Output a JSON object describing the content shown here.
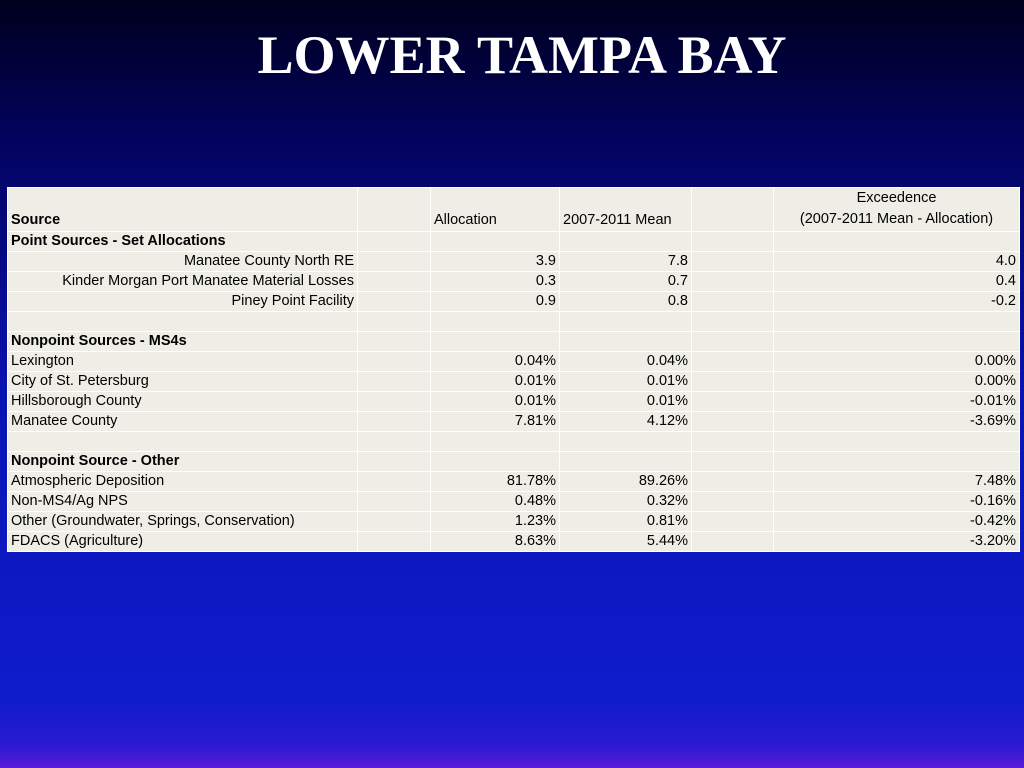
{
  "slide": {
    "title": "LOWER TAMPA BAY"
  },
  "table": {
    "headers": {
      "source": "Source",
      "allocation": "Allocation",
      "mean": "2007-2011 Mean",
      "exceedence_line1": "Exceedence",
      "exceedence_line2": "(2007-2011 Mean - Allocation)"
    },
    "sections": [
      {
        "heading": "Point Sources - Set Allocations",
        "rows": [
          {
            "source": "Manatee County North RE",
            "allocation": "3.9",
            "mean": "7.8",
            "exceedence": "4.0"
          },
          {
            "source": "Kinder Morgan Port Manatee Material Losses",
            "allocation": "0.3",
            "mean": "0.7",
            "exceedence": "0.4"
          },
          {
            "source": "Piney Point Facility",
            "allocation": "0.9",
            "mean": "0.8",
            "exceedence": "-0.2"
          }
        ]
      },
      {
        "heading": "Nonpoint Sources - MS4s",
        "rows": [
          {
            "source": "Lexington",
            "allocation": "0.04%",
            "mean": "0.04%",
            "exceedence": "0.00%"
          },
          {
            "source": "City of St. Petersburg",
            "allocation": "0.01%",
            "mean": "0.01%",
            "exceedence": "0.00%"
          },
          {
            "source": "Hillsborough County",
            "allocation": "0.01%",
            "mean": "0.01%",
            "exceedence": "-0.01%"
          },
          {
            "source": "Manatee County",
            "allocation": "7.81%",
            "mean": "4.12%",
            "exceedence": "-3.69%"
          }
        ]
      },
      {
        "heading": "Nonpoint Source - Other",
        "rows": [
          {
            "source": "Atmospheric Deposition",
            "allocation": "81.78%",
            "mean": "89.26%",
            "exceedence": "7.48%"
          },
          {
            "source": "Non-MS4/Ag NPS",
            "allocation": "0.48%",
            "mean": "0.32%",
            "exceedence": "-0.16%"
          },
          {
            "source": "Other (Groundwater, Springs, Conservation)",
            "allocation": "1.23%",
            "mean": "0.81%",
            "exceedence": "-0.42%"
          },
          {
            "source": "FDACS (Agriculture)",
            "allocation": "8.63%",
            "mean": "5.44%",
            "exceedence": "-3.20%"
          }
        ]
      }
    ]
  }
}
